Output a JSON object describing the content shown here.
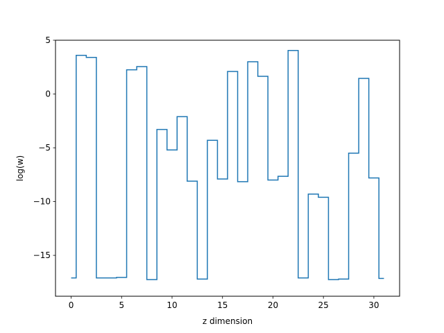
{
  "chart_data": {
    "type": "line",
    "drawstyle": "steps-mid",
    "title": "",
    "xlabel": "z dimension",
    "ylabel": "log(w)",
    "xlim": [
      -1.55,
      32.55
    ],
    "ylim": [
      -18.8,
      5.0
    ],
    "xticks": [
      0,
      5,
      10,
      15,
      20,
      25,
      30
    ],
    "xtick_labels": [
      "0",
      "5",
      "10",
      "15",
      "20",
      "25",
      "30"
    ],
    "yticks": [
      5,
      0,
      -5,
      -10,
      -15
    ],
    "ytick_labels": [
      "5",
      "0",
      "−5",
      "−10",
      "−15"
    ],
    "grid": false,
    "series": [
      {
        "color": "#1f77b4",
        "x": [
          0,
          1,
          2,
          3,
          4,
          5,
          6,
          7,
          8,
          9,
          10,
          11,
          12,
          13,
          14,
          15,
          16,
          17,
          18,
          19,
          20,
          21,
          22,
          23,
          24,
          25,
          26,
          27,
          28,
          29,
          30,
          31
        ],
        "values": [
          -17.1,
          3.6,
          3.4,
          -17.1,
          -17.1,
          -17.05,
          2.25,
          2.55,
          -17.25,
          -3.3,
          -5.2,
          -2.1,
          -8.1,
          -17.2,
          -4.3,
          -7.9,
          2.1,
          -8.15,
          3.0,
          1.65,
          -8.0,
          -7.65,
          4.05,
          -17.1,
          -9.3,
          -9.6,
          -17.25,
          -17.2,
          -5.5,
          1.45,
          -7.8,
          -17.15
        ]
      }
    ]
  }
}
